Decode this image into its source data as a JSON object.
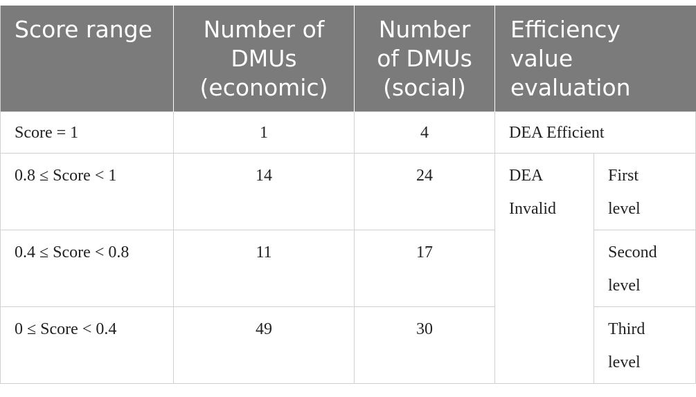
{
  "table": {
    "headers": [
      "Score range",
      "Number of DMUs (economic)",
      "Number of DMUs (social)",
      "Efficiency value evaluation"
    ],
    "header_lines": {
      "c1": [
        "Score range"
      ],
      "c2": [
        "Number of",
        "DMUs",
        "(economic)"
      ],
      "c3": [
        "Number",
        "of DMUs",
        "(social)"
      ],
      "c4": [
        "Efficiency",
        "value",
        "evaluation"
      ]
    },
    "rows": [
      {
        "range": "Score = 1",
        "economic": "1",
        "social": "4",
        "evaluation": "DEA Efficient"
      },
      {
        "range": "0.8 ≤ Score < 1",
        "economic": "14",
        "social": "24",
        "level_line1": "First",
        "level_line2": "level"
      },
      {
        "range": "0.4 ≤ Score < 0.8",
        "economic": "11",
        "social": "17",
        "level_line1": "Second",
        "level_line2": "level"
      },
      {
        "range": "0 ≤ Score < 0.4",
        "economic": "49",
        "social": "30",
        "level_line1": "Third",
        "level_line2": "level"
      }
    ],
    "invalid_line1": "DEA",
    "invalid_line2": "Invalid"
  }
}
